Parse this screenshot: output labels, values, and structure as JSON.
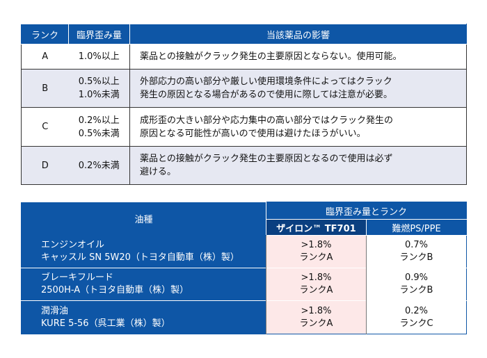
{
  "table1": {
    "headers": [
      "ランク",
      "臨界歪み量",
      "当該薬品の影響"
    ],
    "rows": [
      {
        "rank": "A",
        "strain": [
          "1.0%以上"
        ],
        "effect": [
          "薬品との接触がクラック発生の主要原因とならない。使用可能。"
        ]
      },
      {
        "rank": "B",
        "strain": [
          "0.5%以上",
          "1.0%未満"
        ],
        "effect": [
          "外部応力の高い部分や厳しい使用環境条件によってはクラック",
          "発生の原因となる場合があるので使用に際しては注意が必要。"
        ]
      },
      {
        "rank": "C",
        "strain": [
          "0.2%以上",
          "0.5%未満"
        ],
        "effect": [
          "成形歪の大きい部分や応力集中の高い部分ではクラック発生の",
          "原因となる可能性が高いので使用は避けたほうがいい。"
        ]
      },
      {
        "rank": "D",
        "strain": [
          "0.2%未満"
        ],
        "effect": [
          "薬品との接触がクラック発生の主要原因となるので使用は必ず",
          "避ける。"
        ]
      }
    ]
  },
  "table2": {
    "header_oil": "油種",
    "header_group": "臨界歪み量とランク",
    "header_zylon": "ザイロン™ TF701",
    "header_nanen": "難燃PS/PPE",
    "rows": [
      {
        "oil": [
          "エンジンオイル",
          "キャッスル SN 5W20（トヨタ自動車（株）製）"
        ],
        "zylon": [
          ">1.8%",
          "ランクA"
        ],
        "nanen": [
          "0.7%",
          "ランクB"
        ]
      },
      {
        "oil": [
          "ブレーキフルード",
          "2500H-A（トヨタ自動車（株）製）"
        ],
        "zylon": [
          ">1.8%",
          "ランクA"
        ],
        "nanen": [
          "0.9%",
          "ランクB"
        ]
      },
      {
        "oil": [
          "潤滑油",
          "KURE 5-56（呉工業（株）製）"
        ],
        "zylon": [
          ">1.8%",
          "ランクA"
        ],
        "nanen": [
          "0.2%",
          "ランクC"
        ]
      }
    ]
  }
}
